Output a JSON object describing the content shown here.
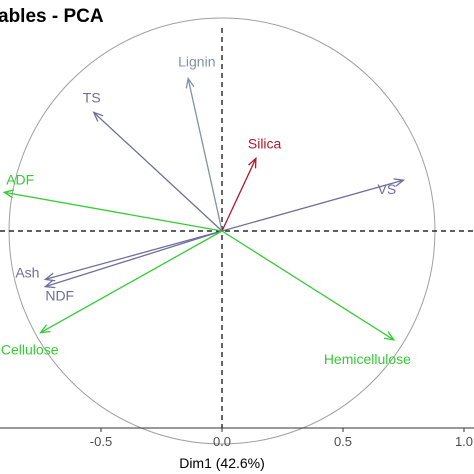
{
  "chart_data": {
    "type": "scatter",
    "title": "ables - PCA",
    "xlabel": "Dim1 (42.6%)",
    "ylabel": "",
    "xlim": [
      -0.92,
      1.0
    ],
    "ylim": [
      -0.94,
      1.0
    ],
    "x_ticks": [
      "-0.5",
      "0.0",
      "0.5",
      "1.0"
    ],
    "grid": false,
    "variables": [
      {
        "name": "Lignin",
        "x": -0.14,
        "y": 0.63,
        "color": "#7f93a6"
      },
      {
        "name": "TS",
        "x": -0.53,
        "y": 0.49,
        "color": "#6f6f9c"
      },
      {
        "name": "Silica",
        "x": 0.14,
        "y": 0.3,
        "color": "#b2182b"
      },
      {
        "name": "VS",
        "x": 0.75,
        "y": 0.21,
        "color": "#6f6f9c"
      },
      {
        "name": "ADF",
        "x": -0.9,
        "y": 0.16,
        "color": "#33cc33"
      },
      {
        "name": "Ash",
        "x": -0.73,
        "y": -0.2,
        "color": "#6f6f9c"
      },
      {
        "name": "NDF",
        "x": -0.73,
        "y": -0.23,
        "color": "#6f6f9c"
      },
      {
        "name": "Cellulose",
        "x": -0.75,
        "y": -0.42,
        "color": "#33cc33"
      },
      {
        "name": "Hemicellulose",
        "x": 0.71,
        "y": -0.45,
        "color": "#33cc33"
      }
    ]
  }
}
